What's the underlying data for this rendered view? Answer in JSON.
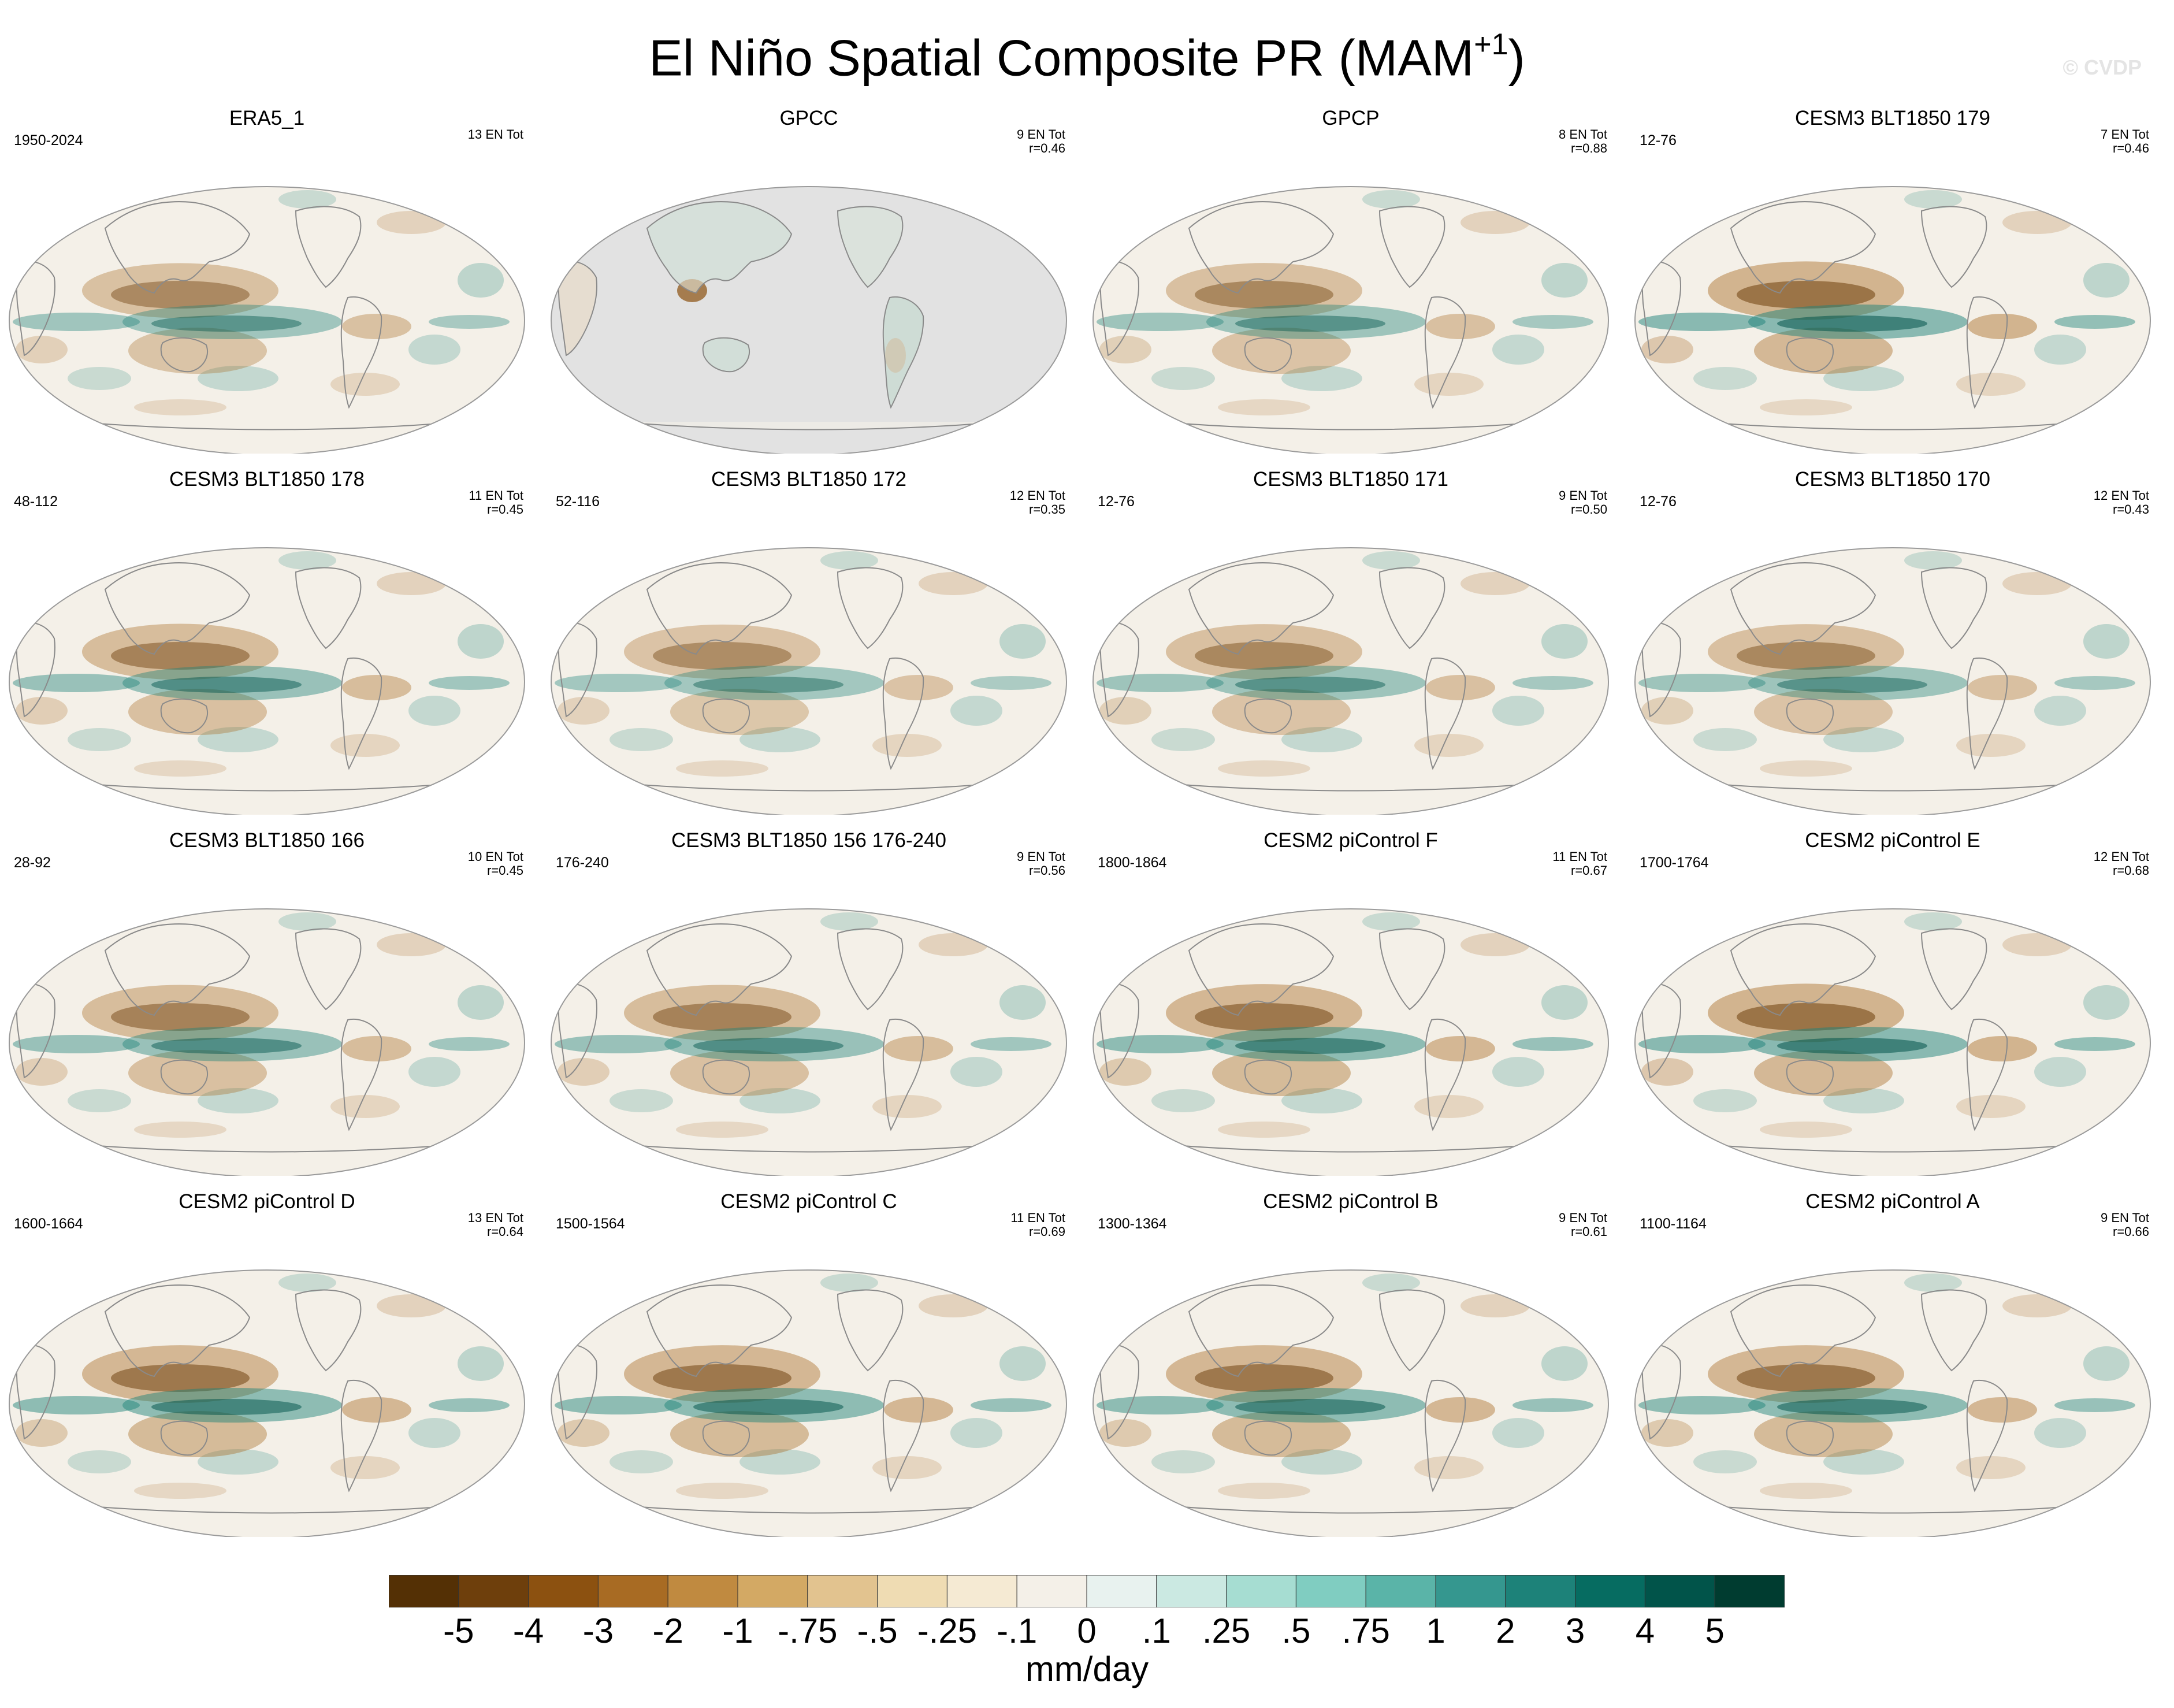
{
  "title": {
    "main": "El Niño Spatial Composite PR (MAM",
    "superscript": "+1",
    "close": ")"
  },
  "watermark": "© CVDP",
  "panels": [
    {
      "title": "ERA5_1",
      "years": "1950-2024",
      "count": "13 EN Tot",
      "corr": "",
      "land_only": false,
      "intensity": 0.78,
      "pattern": "obs"
    },
    {
      "title": "GPCC",
      "years": "",
      "count": "9 EN Tot",
      "corr": "r=0.46",
      "land_only": true,
      "intensity": 0.5,
      "pattern": "land"
    },
    {
      "title": "GPCP",
      "years": "",
      "count": "8 EN Tot",
      "corr": "r=0.88",
      "land_only": false,
      "intensity": 0.8,
      "pattern": "obs"
    },
    {
      "title": "CESM3 BLT1850 179",
      "years": "12-76",
      "count": "7 EN Tot",
      "corr": "r=0.46",
      "land_only": false,
      "intensity": 1.0,
      "pattern": "model"
    },
    {
      "title": "CESM3 BLT1850 178",
      "years": "48-112",
      "count": "11 EN Tot",
      "corr": "r=0.45",
      "land_only": false,
      "intensity": 0.85,
      "pattern": "model"
    },
    {
      "title": "CESM3 BLT1850 172",
      "years": "52-116",
      "count": "12 EN Tot",
      "corr": "r=0.35",
      "land_only": false,
      "intensity": 0.75,
      "pattern": "model"
    },
    {
      "title": "CESM3 BLT1850 171",
      "years": "12-76",
      "count": "9 EN Tot",
      "corr": "r=0.50",
      "land_only": false,
      "intensity": 0.8,
      "pattern": "model"
    },
    {
      "title": "CESM3 BLT1850 170",
      "years": "12-76",
      "count": "12 EN Tot",
      "corr": "r=0.43",
      "land_only": false,
      "intensity": 0.8,
      "pattern": "model"
    },
    {
      "title": "CESM3 BLT1850 166",
      "years": "28-92",
      "count": "10 EN Tot",
      "corr": "r=0.45",
      "land_only": false,
      "intensity": 0.85,
      "pattern": "model"
    },
    {
      "title": "CESM3 BLT1850 156 176-240",
      "years": "176-240",
      "count": "9 EN Tot",
      "corr": "r=0.56",
      "land_only": false,
      "intensity": 0.85,
      "pattern": "model"
    },
    {
      "title": "CESM2 piControl F",
      "years": "1800-1864",
      "count": "11 EN Tot",
      "corr": "r=0.67",
      "land_only": false,
      "intensity": 0.95,
      "pattern": "strong"
    },
    {
      "title": "CESM2 piControl E",
      "years": "1700-1764",
      "count": "12 EN Tot",
      "corr": "r=0.68",
      "land_only": false,
      "intensity": 1.0,
      "pattern": "strong"
    },
    {
      "title": "CESM2 piControl D",
      "years": "1600-1664",
      "count": "13 EN Tot",
      "corr": "r=0.64",
      "land_only": false,
      "intensity": 0.95,
      "pattern": "strong"
    },
    {
      "title": "CESM2 piControl C",
      "years": "1500-1564",
      "count": "11 EN Tot",
      "corr": "r=0.69",
      "land_only": false,
      "intensity": 0.95,
      "pattern": "strong"
    },
    {
      "title": "CESM2 piControl B",
      "years": "1300-1364",
      "count": "9 EN Tot",
      "corr": "r=0.61",
      "land_only": false,
      "intensity": 0.95,
      "pattern": "strong"
    },
    {
      "title": "CESM2 piControl A",
      "years": "1100-1164",
      "count": "9 EN Tot",
      "corr": "r=0.66",
      "land_only": false,
      "intensity": 0.95,
      "pattern": "strong"
    }
  ],
  "colorbar": {
    "colors": [
      "#543005",
      "#6e3f0c",
      "#8c5110",
      "#a86b23",
      "#c08a40",
      "#d3a964",
      "#e2c38f",
      "#efdcb3",
      "#f5ead3",
      "#f4f0e8",
      "#e8f2ef",
      "#cbe9e2",
      "#a6ddd2",
      "#80cdc1",
      "#5ab4a8",
      "#35978f",
      "#1d8279",
      "#066c61",
      "#01544a",
      "#003c30"
    ],
    "tick_labels": [
      "-5",
      "-4",
      "-3",
      "-2",
      "-1",
      "-.75",
      "-.5",
      "-.25",
      "-.1",
      "0",
      ".1",
      ".25",
      ".5",
      ".75",
      "1",
      "2",
      "3",
      "4",
      "5"
    ],
    "units": "mm/day"
  },
  "styles": {
    "ocean_background": "#f4f0e8",
    "land_masked_gray": "#e2e2e2",
    "coastline": "#8a8a8a",
    "wet_color": "#1d8279",
    "dry_color": "#a86b23"
  }
}
